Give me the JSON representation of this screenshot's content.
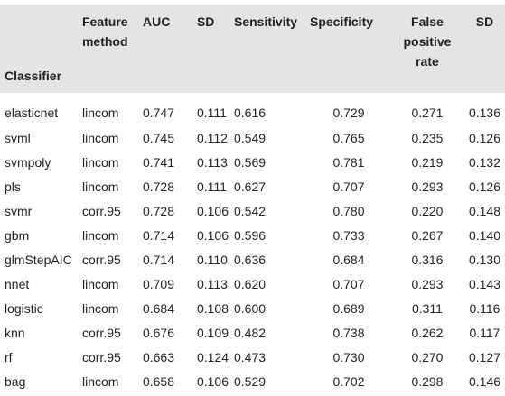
{
  "table": {
    "headers": {
      "classifier": "Classifier",
      "feature_method": [
        "Feature",
        "method"
      ],
      "auc": "AUC",
      "sd1": "SD",
      "sensitivity": "Sensitivity",
      "specificity": "Specificity",
      "fpr": [
        "False",
        "positive",
        "rate"
      ],
      "sd2": "SD"
    },
    "rows": [
      [
        "elasticnet",
        "lincom",
        "0.747",
        "0.111",
        "0.616",
        "0.729",
        "0.271",
        "0.136"
      ],
      [
        "svml",
        "lincom",
        "0.745",
        "0.112",
        "0.549",
        "0.765",
        "0.235",
        "0.126"
      ],
      [
        "svmpoly",
        "lincom",
        "0.741",
        "0.113",
        "0.569",
        "0.781",
        "0.219",
        "0.132"
      ],
      [
        "pls",
        "lincom",
        "0.728",
        "0.111",
        "0.627",
        "0.707",
        "0.293",
        "0.126"
      ],
      [
        "svmr",
        "corr.95",
        "0.728",
        "0.106",
        "0.542",
        "0.780",
        "0.220",
        "0.148"
      ],
      [
        "gbm",
        "lincom",
        "0.714",
        "0.106",
        "0.596",
        "0.733",
        "0.267",
        "0.140"
      ],
      [
        "glmStepAIC",
        "corr.95",
        "0.714",
        "0.110",
        "0.636",
        "0.684",
        "0.316",
        "0.130"
      ],
      [
        "nnet",
        "lincom",
        "0.709",
        "0.113",
        "0.620",
        "0.707",
        "0.293",
        "0.143"
      ],
      [
        "logistic",
        "lincom",
        "0.684",
        "0.108",
        "0.600",
        "0.689",
        "0.311",
        "0.116"
      ],
      [
        "knn",
        "corr.95",
        "0.676",
        "0.109",
        "0.482",
        "0.738",
        "0.262",
        "0.117"
      ],
      [
        "rf",
        "corr.95",
        "0.663",
        "0.124",
        "0.473",
        "0.730",
        "0.270",
        "0.127"
      ],
      [
        "bag",
        "lincom",
        "0.658",
        "0.106",
        "0.529",
        "0.702",
        "0.298",
        "0.146"
      ]
    ]
  },
  "colors": {
    "header_bg": "#e4e4e4",
    "text": "#222222",
    "rule": "#9a9a9a"
  }
}
